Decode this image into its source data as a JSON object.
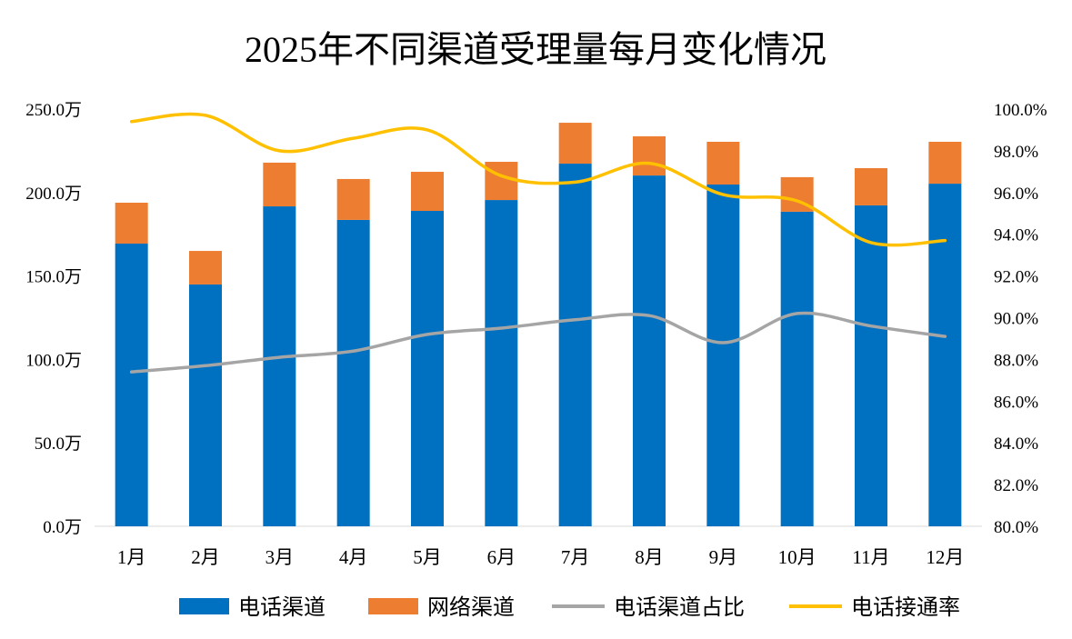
{
  "chart_data": {
    "type": "bar",
    "title": "2025年不同渠道受理量每月变化情况",
    "categories": [
      "1月",
      "2月",
      "3月",
      "4月",
      "5月",
      "6月",
      "7月",
      "8月",
      "9月",
      "10月",
      "11月",
      "12月"
    ],
    "left_axis": {
      "range": [
        0,
        250
      ],
      "ticks": [
        "0.0万",
        "50.0万",
        "100.0万",
        "150.0万",
        "200.0万",
        "250.0万"
      ],
      "unit": "万"
    },
    "right_axis": {
      "range": [
        80,
        100
      ],
      "ticks": [
        "80.0%",
        "82.0%",
        "84.0%",
        "86.0%",
        "88.0%",
        "90.0%",
        "92.0%",
        "94.0%",
        "96.0%",
        "98.0%",
        "100.0%"
      ],
      "unit": "%"
    },
    "series": [
      {
        "name": "电话渠道",
        "kind": "stacked-bar",
        "axis": "left",
        "color": "#0070C0",
        "values": [
          169.4,
          144.9,
          191.7,
          183.6,
          189.0,
          195.5,
          217.3,
          210.2,
          204.8,
          188.5,
          192.3,
          205.3
        ]
      },
      {
        "name": "网络渠道",
        "kind": "stacked-bar",
        "axis": "left",
        "color": "#ED7D31",
        "values": [
          24.5,
          20.1,
          26.2,
          24.5,
          23.4,
          22.9,
          24.5,
          23.5,
          25.6,
          20.7,
          22.3,
          25.1
        ]
      },
      {
        "name": "电话渠道占比",
        "kind": "smooth-line",
        "axis": "right",
        "color": "#A5A5A5",
        "values": [
          87.4,
          87.7,
          88.1,
          88.4,
          89.2,
          89.5,
          89.9,
          90.1,
          88.8,
          90.2,
          89.6,
          89.1
        ]
      },
      {
        "name": "电话接通率",
        "kind": "smooth-line",
        "axis": "right",
        "color": "#FFC000",
        "values": [
          99.4,
          99.7,
          98.0,
          98.6,
          99.0,
          96.8,
          96.5,
          97.4,
          95.9,
          95.6,
          93.6,
          93.7
        ]
      }
    ],
    "grid": false,
    "legend_position": "bottom"
  }
}
